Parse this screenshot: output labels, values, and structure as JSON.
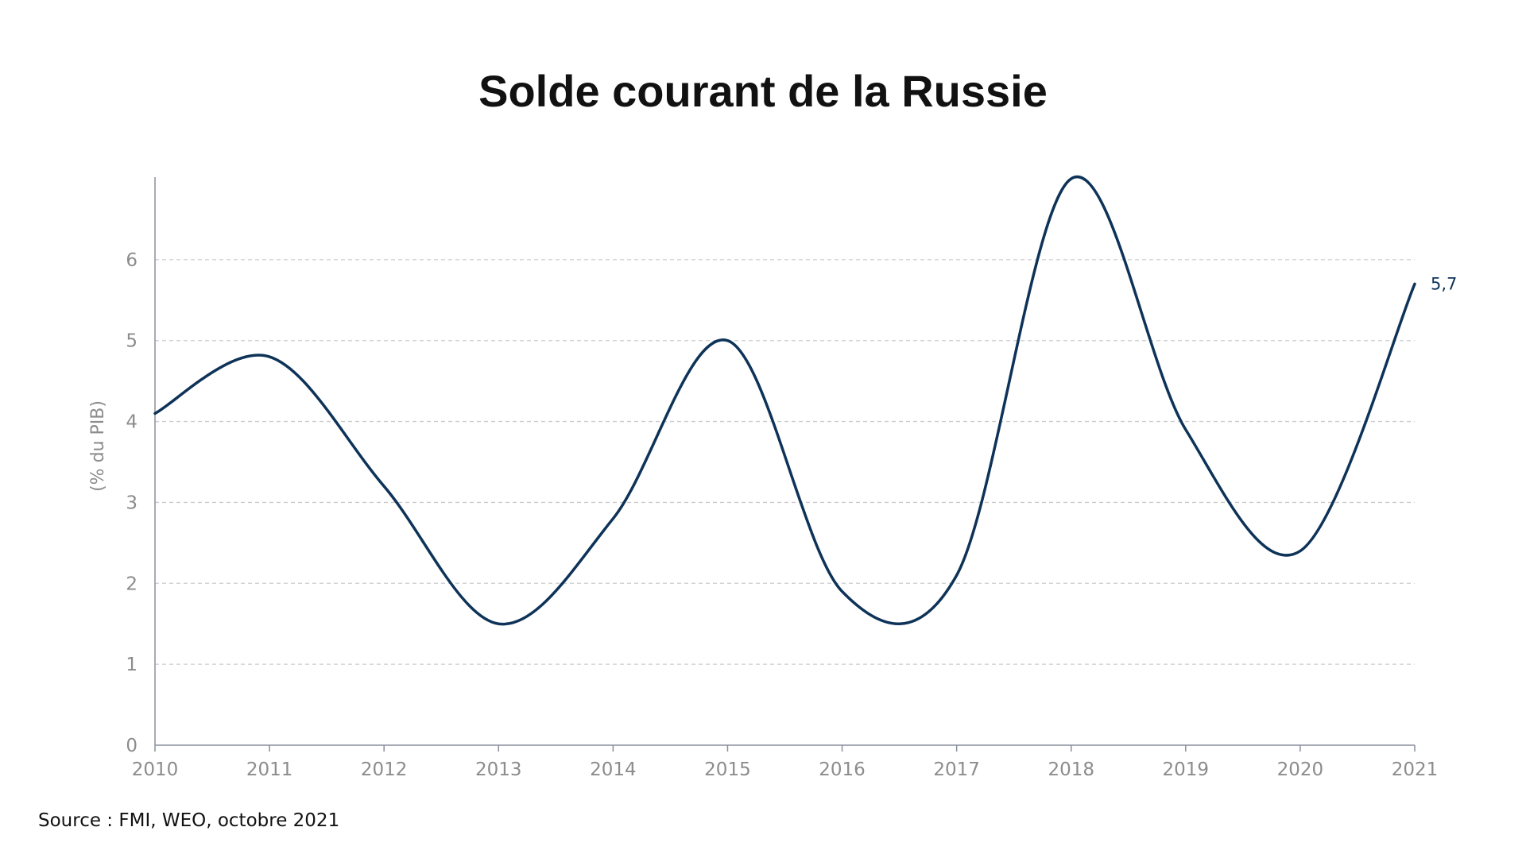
{
  "chart_data": {
    "type": "line",
    "title": "Solde courant de la Russie",
    "ylabel": "(% du PIB)",
    "xlabel": "",
    "x": [
      "2010",
      "2011",
      "2012",
      "2013",
      "2014",
      "2015",
      "2016",
      "2017",
      "2018",
      "2019",
      "2020",
      "2021"
    ],
    "series": [
      {
        "values": [
          4.1,
          4.8,
          3.2,
          1.5,
          2.8,
          5.0,
          1.9,
          2.1,
          7.0,
          3.9,
          2.4,
          5.7
        ]
      }
    ],
    "ylim": [
      0,
      7
    ],
    "yticks": [
      "0",
      "1",
      "2",
      "3",
      "4",
      "5",
      "6"
    ],
    "grid": true,
    "end_label": "5,7",
    "source": "Source : FMI, WEO, octobre 2021",
    "colors": {
      "line": "#0e3358",
      "grid": "#cccccc",
      "axis": "#8a8f9c",
      "tick_text": "#8c8c8c",
      "end_label": "#0e3358"
    }
  }
}
